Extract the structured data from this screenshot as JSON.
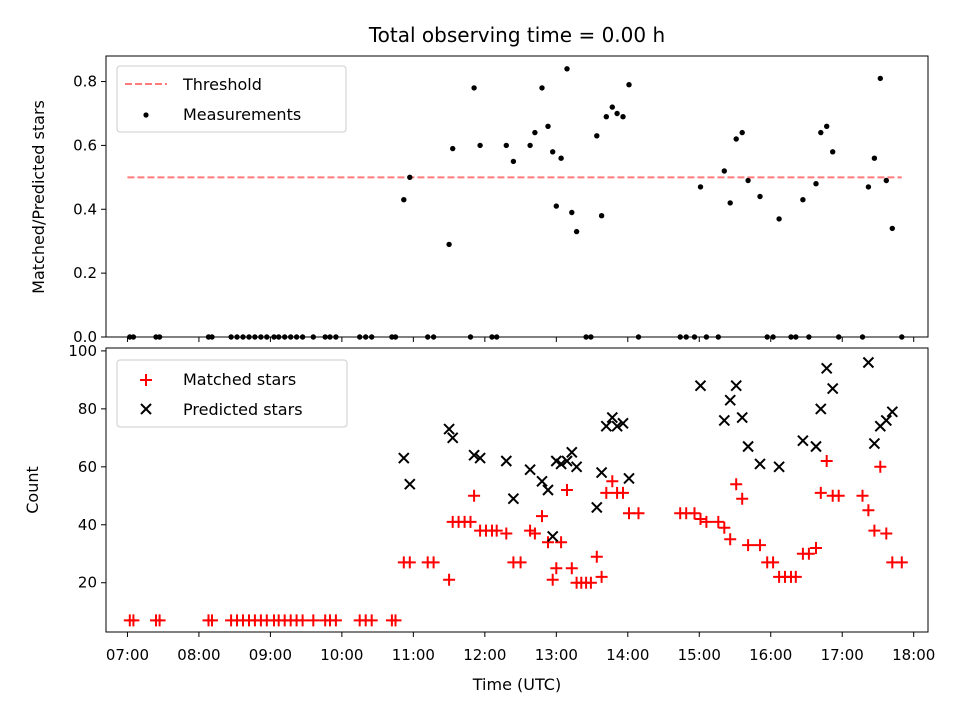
{
  "chart_data": [
    {
      "type": "line",
      "title": "Total observing time = 0.00 h",
      "ylabel": "Matched/Predicted stars",
      "xlabel": "",
      "xlim": [
        "06:42",
        "18:12"
      ],
      "ylim": [
        0,
        0.88
      ],
      "yticks": [
        0,
        0.2,
        0.4,
        0.6,
        0.8
      ],
      "ytick_labels": [
        "0.0",
        "0.2",
        "0.4",
        "0.6",
        "0.8"
      ],
      "legend_position": "top-left",
      "grid": false,
      "series": [
        {
          "name": "Threshold",
          "kind": "dashed-line",
          "color": "#ff7b7b",
          "x": [
            "07:00",
            "17:50"
          ],
          "y": [
            0.5,
            0.5
          ]
        },
        {
          "name": "Measurements",
          "kind": "scatter-dot",
          "color": "#000000",
          "points": [
            [
              "07:02",
              0
            ],
            [
              "07:05",
              0
            ],
            [
              "07:24",
              0
            ],
            [
              "07:27",
              0
            ],
            [
              "08:08",
              0
            ],
            [
              "08:11",
              0
            ],
            [
              "08:27",
              0
            ],
            [
              "08:32",
              0
            ],
            [
              "08:37",
              0
            ],
            [
              "08:42",
              0
            ],
            [
              "08:47",
              0
            ],
            [
              "08:52",
              0
            ],
            [
              "08:57",
              0
            ],
            [
              "09:03",
              0
            ],
            [
              "09:07",
              0
            ],
            [
              "09:12",
              0
            ],
            [
              "09:17",
              0
            ],
            [
              "09:22",
              0
            ],
            [
              "09:27",
              0
            ],
            [
              "09:36",
              0
            ],
            [
              "09:46",
              0
            ],
            [
              "09:50",
              0
            ],
            [
              "09:55",
              0
            ],
            [
              "10:15",
              0
            ],
            [
              "10:20",
              0
            ],
            [
              "10:25",
              0
            ],
            [
              "10:42",
              0
            ],
            [
              "10:45",
              0
            ],
            [
              "10:52",
              0.43
            ],
            [
              "10:57",
              0.5
            ],
            [
              "11:12",
              0
            ],
            [
              "11:17",
              0
            ],
            [
              "11:30",
              0.29
            ],
            [
              "11:33",
              0.59
            ],
            [
              "11:48",
              0
            ],
            [
              "11:51",
              0.78
            ],
            [
              "11:56",
              0.6
            ],
            [
              "12:06",
              0
            ],
            [
              "12:10",
              0
            ],
            [
              "12:18",
              0.6
            ],
            [
              "12:24",
              0.55
            ],
            [
              "12:38",
              0.6
            ],
            [
              "12:42",
              0.64
            ],
            [
              "12:48",
              0.78
            ],
            [
              "12:53",
              0.66
            ],
            [
              "12:57",
              0.58
            ],
            [
              "13:00",
              0.41
            ],
            [
              "13:04",
              0.56
            ],
            [
              "13:09",
              0.84
            ],
            [
              "13:13",
              0.39
            ],
            [
              "13:17",
              0.33
            ],
            [
              "13:25",
              0
            ],
            [
              "13:29",
              0
            ],
            [
              "13:34",
              0.63
            ],
            [
              "13:38",
              0.38
            ],
            [
              "13:42",
              0.69
            ],
            [
              "13:47",
              0.72
            ],
            [
              "13:51",
              0.7
            ],
            [
              "13:56",
              0.69
            ],
            [
              "14:01",
              0.79
            ],
            [
              "14:09",
              0
            ],
            [
              "14:44",
              0
            ],
            [
              "14:49",
              0
            ],
            [
              "14:56",
              0
            ],
            [
              "15:01",
              0.47
            ],
            [
              "15:06",
              0
            ],
            [
              "15:16",
              0
            ],
            [
              "15:21",
              0.52
            ],
            [
              "15:26",
              0.42
            ],
            [
              "15:31",
              0.62
            ],
            [
              "15:36",
              0.64
            ],
            [
              "15:41",
              0.49
            ],
            [
              "15:51",
              0.44
            ],
            [
              "15:57",
              0
            ],
            [
              "16:02",
              0
            ],
            [
              "16:07",
              0.37
            ],
            [
              "16:17",
              0
            ],
            [
              "16:21",
              0
            ],
            [
              "16:27",
              0.43
            ],
            [
              "16:32",
              0
            ],
            [
              "16:38",
              0.48
            ],
            [
              "16:42",
              0.64
            ],
            [
              "16:47",
              0.66
            ],
            [
              "16:52",
              0.58
            ],
            [
              "16:57",
              0
            ],
            [
              "17:17",
              0
            ],
            [
              "17:22",
              0.47
            ],
            [
              "17:27",
              0.56
            ],
            [
              "17:32",
              0.81
            ],
            [
              "17:37",
              0.49
            ],
            [
              "17:42",
              0.34
            ],
            [
              "17:50",
              0
            ]
          ]
        }
      ]
    },
    {
      "type": "scatter",
      "title": "",
      "xlabel": "Time (UTC)",
      "ylabel": "Count",
      "xlim": [
        "06:42",
        "18:12"
      ],
      "ylim": [
        3,
        101
      ],
      "yticks": [
        20,
        40,
        60,
        80,
        100
      ],
      "xticks": [
        "07:00",
        "08:00",
        "09:00",
        "10:00",
        "11:00",
        "12:00",
        "13:00",
        "14:00",
        "15:00",
        "16:00",
        "17:00",
        "18:00"
      ],
      "legend_position": "top-left",
      "grid": false,
      "series": [
        {
          "name": "Matched stars",
          "marker": "plus",
          "color": "#ff0000",
          "points": [
            [
              "07:02",
              7
            ],
            [
              "07:05",
              7
            ],
            [
              "07:24",
              7
            ],
            [
              "07:27",
              7
            ],
            [
              "08:08",
              7
            ],
            [
              "08:11",
              7
            ],
            [
              "08:27",
              7
            ],
            [
              "08:32",
              7
            ],
            [
              "08:37",
              7
            ],
            [
              "08:42",
              7
            ],
            [
              "08:47",
              7
            ],
            [
              "08:52",
              7
            ],
            [
              "08:57",
              7
            ],
            [
              "09:03",
              7
            ],
            [
              "09:07",
              7
            ],
            [
              "09:12",
              7
            ],
            [
              "09:17",
              7
            ],
            [
              "09:22",
              7
            ],
            [
              "09:27",
              7
            ],
            [
              "09:36",
              7
            ],
            [
              "09:46",
              7
            ],
            [
              "09:50",
              7
            ],
            [
              "09:55",
              7
            ],
            [
              "10:15",
              7
            ],
            [
              "10:20",
              7
            ],
            [
              "10:25",
              7
            ],
            [
              "10:42",
              7
            ],
            [
              "10:45",
              7
            ],
            [
              "10:52",
              27
            ],
            [
              "10:57",
              27
            ],
            [
              "11:12",
              27
            ],
            [
              "11:17",
              27
            ],
            [
              "11:30",
              21
            ],
            [
              "11:33",
              41
            ],
            [
              "11:38",
              41
            ],
            [
              "11:43",
              41
            ],
            [
              "11:48",
              41
            ],
            [
              "11:51",
              50
            ],
            [
              "11:56",
              38
            ],
            [
              "12:01",
              38
            ],
            [
              "12:06",
              38
            ],
            [
              "12:10",
              38
            ],
            [
              "12:18",
              37
            ],
            [
              "12:24",
              27
            ],
            [
              "12:30",
              27
            ],
            [
              "12:38",
              38
            ],
            [
              "12:42",
              37
            ],
            [
              "12:48",
              43
            ],
            [
              "12:53",
              34
            ],
            [
              "12:57",
              21
            ],
            [
              "13:00",
              25
            ],
            [
              "13:04",
              34
            ],
            [
              "13:09",
              52
            ],
            [
              "13:13",
              25
            ],
            [
              "13:17",
              20
            ],
            [
              "13:21",
              20
            ],
            [
              "13:25",
              20
            ],
            [
              "13:29",
              20
            ],
            [
              "13:34",
              29
            ],
            [
              "13:38",
              22
            ],
            [
              "13:42",
              51
            ],
            [
              "13:47",
              55
            ],
            [
              "13:51",
              51
            ],
            [
              "13:56",
              51
            ],
            [
              "14:01",
              44
            ],
            [
              "14:09",
              44
            ],
            [
              "14:44",
              44
            ],
            [
              "14:49",
              44
            ],
            [
              "14:56",
              44
            ],
            [
              "15:01",
              42
            ],
            [
              "15:06",
              41
            ],
            [
              "15:16",
              41
            ],
            [
              "15:21",
              39
            ],
            [
              "15:26",
              35
            ],
            [
              "15:31",
              54
            ],
            [
              "15:36",
              49
            ],
            [
              "15:41",
              33
            ],
            [
              "15:51",
              33
            ],
            [
              "15:57",
              27
            ],
            [
              "16:02",
              27
            ],
            [
              "16:07",
              22
            ],
            [
              "16:12",
              22
            ],
            [
              "16:17",
              22
            ],
            [
              "16:21",
              22
            ],
            [
              "16:27",
              30
            ],
            [
              "16:32",
              30
            ],
            [
              "16:38",
              32
            ],
            [
              "16:42",
              51
            ],
            [
              "16:47",
              62
            ],
            [
              "16:52",
              50
            ],
            [
              "16:57",
              50
            ],
            [
              "17:17",
              50
            ],
            [
              "17:22",
              45
            ],
            [
              "17:27",
              38
            ],
            [
              "17:32",
              60
            ],
            [
              "17:37",
              37
            ],
            [
              "17:42",
              27
            ],
            [
              "17:50",
              27
            ]
          ]
        },
        {
          "name": "Predicted stars",
          "marker": "x",
          "color": "#000000",
          "points": [
            [
              "10:52",
              63
            ],
            [
              "10:57",
              54
            ],
            [
              "11:30",
              73
            ],
            [
              "11:33",
              70
            ],
            [
              "11:51",
              64
            ],
            [
              "11:56",
              63
            ],
            [
              "12:18",
              62
            ],
            [
              "12:24",
              49
            ],
            [
              "12:38",
              59
            ],
            [
              "12:48",
              55
            ],
            [
              "12:53",
              52
            ],
            [
              "12:57",
              36
            ],
            [
              "13:00",
              62
            ],
            [
              "13:04",
              61
            ],
            [
              "13:09",
              62
            ],
            [
              "13:13",
              65
            ],
            [
              "13:17",
              60
            ],
            [
              "13:34",
              46
            ],
            [
              "13:38",
              58
            ],
            [
              "13:42",
              74
            ],
            [
              "13:47",
              77
            ],
            [
              "13:51",
              74
            ],
            [
              "13:56",
              75
            ],
            [
              "14:01",
              56
            ],
            [
              "15:01",
              88
            ],
            [
              "15:21",
              76
            ],
            [
              "15:26",
              83
            ],
            [
              "15:31",
              88
            ],
            [
              "15:36",
              77
            ],
            [
              "15:41",
              67
            ],
            [
              "15:51",
              61
            ],
            [
              "16:07",
              60
            ],
            [
              "16:27",
              69
            ],
            [
              "16:38",
              67
            ],
            [
              "16:42",
              80
            ],
            [
              "16:47",
              94
            ],
            [
              "16:52",
              87
            ],
            [
              "17:22",
              96
            ],
            [
              "17:27",
              68
            ],
            [
              "17:32",
              74
            ],
            [
              "17:37",
              76
            ],
            [
              "17:42",
              79
            ]
          ]
        }
      ]
    }
  ]
}
